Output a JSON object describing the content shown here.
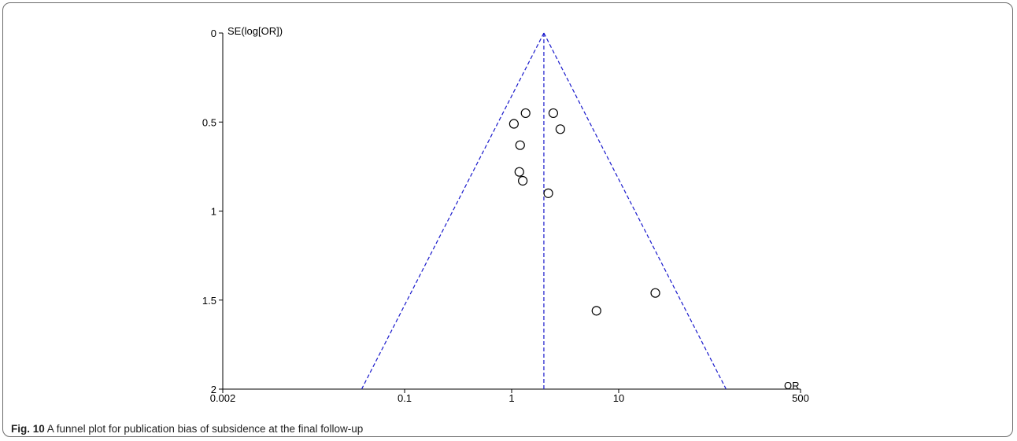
{
  "caption": {
    "label": "Fig. 10",
    "text": "A funnel plot for publication bias of subsidence at the final follow-up"
  },
  "chart_data": {
    "type": "scatter",
    "subtype": "funnel",
    "xlabel": "OR",
    "ylabel": "SE(log[OR])",
    "x_scale": "log",
    "xlim": [
      0.002,
      500
    ],
    "ylim": [
      0,
      2
    ],
    "y_inverted": true,
    "x_ticks": [
      {
        "value": 0.002,
        "label": "0.002"
      },
      {
        "value": 0.1,
        "label": "0.1"
      },
      {
        "value": 1,
        "label": "1"
      },
      {
        "value": 10,
        "label": "10"
      },
      {
        "value": 500,
        "label": "500"
      }
    ],
    "y_ticks": [
      {
        "value": 0,
        "label": "0"
      },
      {
        "value": 0.5,
        "label": "0.5"
      },
      {
        "value": 1,
        "label": "1"
      },
      {
        "value": 1.5,
        "label": "1.5"
      },
      {
        "value": 2,
        "label": "2"
      }
    ],
    "pooled_or": 2.0,
    "funnel_color": "#1a1acc",
    "points": [
      {
        "or": 1.35,
        "se": 0.45
      },
      {
        "or": 2.45,
        "se": 0.45
      },
      {
        "or": 1.05,
        "se": 0.51
      },
      {
        "or": 2.85,
        "se": 0.54
      },
      {
        "or": 1.2,
        "se": 0.63
      },
      {
        "or": 1.18,
        "se": 0.78
      },
      {
        "or": 1.27,
        "se": 0.83
      },
      {
        "or": 2.2,
        "se": 0.9
      },
      {
        "or": 22,
        "se": 1.46
      },
      {
        "or": 6.2,
        "se": 1.56
      }
    ],
    "grid": false,
    "legend": "none"
  }
}
